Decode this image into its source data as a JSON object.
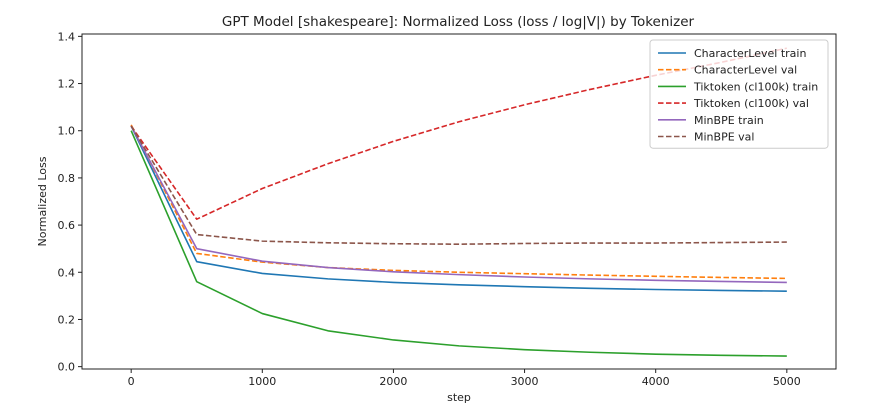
{
  "chart_data": {
    "type": "line",
    "title": "GPT Model [shakespeare]: Normalized Loss (loss / log|V|) by Tokenizer",
    "xlabel": "step",
    "ylabel": "Normalized Loss",
    "xlim": [
      -375,
      5375
    ],
    "ylim": [
      -0.01,
      1.41
    ],
    "xticks": [
      0,
      1000,
      2000,
      3000,
      4000,
      5000
    ],
    "yticks": [
      0.0,
      0.2,
      0.4,
      0.6,
      0.8,
      1.0,
      1.2,
      1.4
    ],
    "xtick_labels": [
      "0",
      "1000",
      "2000",
      "3000",
      "4000",
      "5000"
    ],
    "ytick_labels": [
      "0.0",
      "0.2",
      "0.4",
      "0.6",
      "0.8",
      "1.0",
      "1.2",
      "1.4"
    ],
    "grid": false,
    "legend_position": "top-right",
    "x": [
      0,
      500,
      1000,
      1500,
      2000,
      2500,
      3000,
      3500,
      4000,
      4500,
      5000
    ],
    "series": [
      {
        "name": "CharacterLevel train",
        "style": "solid",
        "color": "#1f77b4",
        "values": [
          1.02,
          0.445,
          0.395,
          0.372,
          0.357,
          0.347,
          0.339,
          0.332,
          0.327,
          0.323,
          0.32
        ]
      },
      {
        "name": "CharacterLevel val",
        "style": "dashed",
        "color": "#ff7f0e",
        "values": [
          1.025,
          0.48,
          0.443,
          0.42,
          0.408,
          0.4,
          0.394,
          0.388,
          0.383,
          0.378,
          0.374
        ]
      },
      {
        "name": "Tiktoken (cl100k) train",
        "style": "solid",
        "color": "#2ca02c",
        "values": [
          1.0,
          0.36,
          0.225,
          0.152,
          0.113,
          0.088,
          0.072,
          0.061,
          0.053,
          0.048,
          0.045
        ]
      },
      {
        "name": "Tiktoken (cl100k) val",
        "style": "dashed",
        "color": "#d62728",
        "values": [
          1.02,
          0.625,
          0.755,
          0.86,
          0.955,
          1.038,
          1.11,
          1.175,
          1.235,
          1.29,
          1.35
        ]
      },
      {
        "name": "MinBPE train",
        "style": "solid",
        "color": "#9467bd",
        "values": [
          1.02,
          0.5,
          0.447,
          0.42,
          0.402,
          0.39,
          0.38,
          0.372,
          0.366,
          0.361,
          0.357
        ]
      },
      {
        "name": "MinBPE val",
        "style": "dashed",
        "color": "#8c564b",
        "values": [
          1.02,
          0.56,
          0.532,
          0.525,
          0.521,
          0.519,
          0.522,
          0.524,
          0.524,
          0.526,
          0.528
        ]
      }
    ]
  }
}
